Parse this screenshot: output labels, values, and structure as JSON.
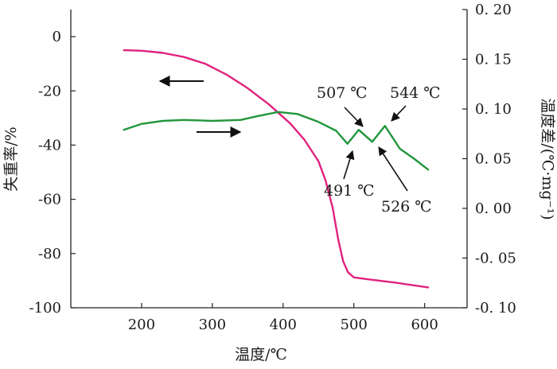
{
  "chart_data": {
    "type": "line",
    "xlabel": "温度/℃",
    "ylabel_left": "失重率/%",
    "ylabel_right": "温度差/(℃·mg⁻¹)",
    "x_ticks": [
      200,
      300,
      400,
      500,
      600
    ],
    "y_left_ticks": [
      0,
      -20,
      -40,
      -60,
      -80,
      -100
    ],
    "y_right_ticks": [
      "0.20",
      "0.15",
      "0.10",
      "0.05",
      "0.00",
      "-0.05",
      "-0.10"
    ],
    "xlim": [
      100,
      660
    ],
    "ylim_left": [
      -100,
      10
    ],
    "ylim_right": [
      -0.1,
      0.2
    ],
    "grid": false,
    "series": [
      {
        "axis": "left",
        "color": "#e0227e",
        "points": [
          [
            175,
            -5
          ],
          [
            200,
            -5.2
          ],
          [
            230,
            -6
          ],
          [
            260,
            -7.5
          ],
          [
            290,
            -10
          ],
          [
            320,
            -14
          ],
          [
            350,
            -19
          ],
          [
            380,
            -25
          ],
          [
            410,
            -32
          ],
          [
            430,
            -38
          ],
          [
            450,
            -46
          ],
          [
            460,
            -53
          ],
          [
            470,
            -63
          ],
          [
            478,
            -75
          ],
          [
            485,
            -83
          ],
          [
            492,
            -87
          ],
          [
            500,
            -88.8
          ],
          [
            520,
            -89.5
          ],
          [
            560,
            -90.8
          ],
          [
            605,
            -92.5
          ]
        ]
      },
      {
        "axis": "right",
        "color": "#22963c",
        "points": [
          [
            175,
            0.079
          ],
          [
            200,
            0.085
          ],
          [
            230,
            0.088
          ],
          [
            260,
            0.089
          ],
          [
            300,
            0.088
          ],
          [
            340,
            0.089
          ],
          [
            365,
            0.093
          ],
          [
            393,
            0.097
          ],
          [
            420,
            0.095
          ],
          [
            450,
            0.087
          ],
          [
            475,
            0.078
          ],
          [
            491,
            0.065
          ],
          [
            507,
            0.079
          ],
          [
            526,
            0.067
          ],
          [
            544,
            0.083
          ],
          [
            565,
            0.06
          ],
          [
            585,
            0.05
          ],
          [
            605,
            0.039
          ]
        ]
      }
    ],
    "annotations": [
      {
        "text": "507 ℃",
        "x": 507,
        "y": 0.079
      },
      {
        "text": "544 ℃",
        "x": 544,
        "y": 0.083
      },
      {
        "text": "491 ℃",
        "x": 491,
        "y": 0.065
      },
      {
        "text": "526 ℃",
        "x": 526,
        "y": 0.067
      }
    ]
  }
}
